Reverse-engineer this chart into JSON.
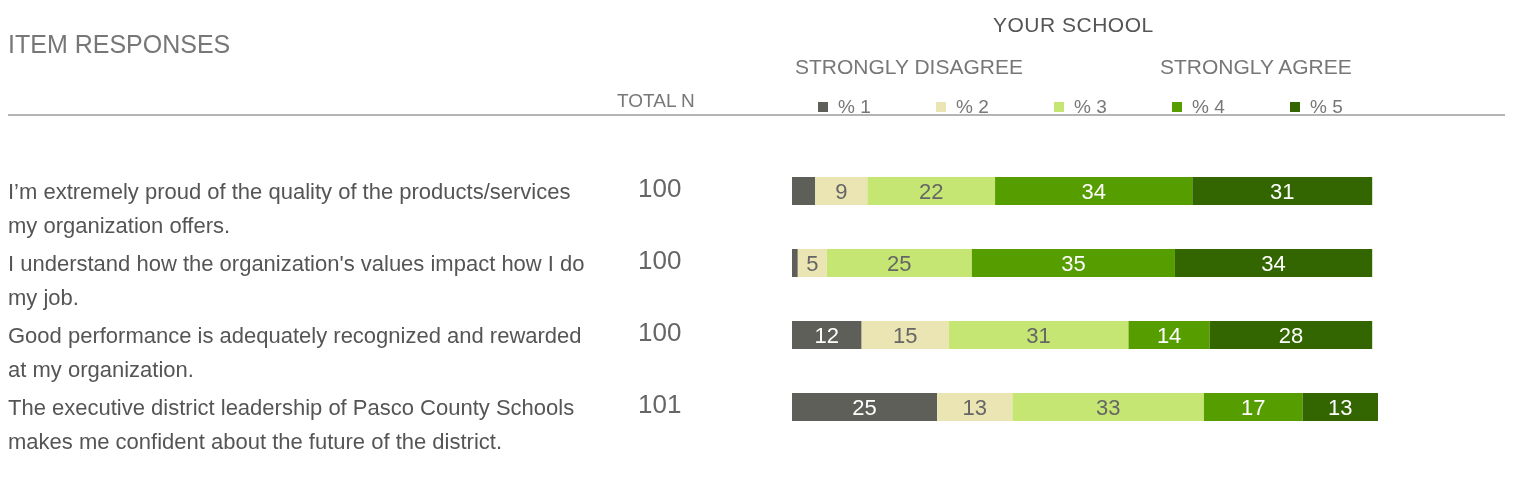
{
  "chart_data": {
    "type": "bar",
    "orientation": "horizontal",
    "stacked": true,
    "title": "ITEM RESPONSES",
    "legend_title": "YOUR SCHOOL",
    "legend": "top",
    "categories": [
      "I’m extremely proud of the quality of the products/services my organization offers.",
      "I understand how the organization's values impact how I do my job.",
      "Good performance is adequately recognized and rewarded at my organization.",
      "The executive district leadership of Pasco County Schools makes me confident about the future of the district."
    ],
    "series": [
      {
        "name": "% 1",
        "color": "#5f5f59",
        "values": [
          4,
          1,
          12,
          25
        ],
        "value_labels": [
          null,
          null,
          "12",
          "25"
        ]
      },
      {
        "name": "% 2",
        "color": "#ebe5b3",
        "values": [
          9,
          5,
          15,
          13
        ],
        "value_labels": [
          "9",
          "5",
          "15",
          "13"
        ]
      },
      {
        "name": "% 3",
        "color": "#c5e672",
        "values": [
          22,
          25,
          31,
          33
        ],
        "value_labels": [
          "22",
          "25",
          "31",
          "33"
        ]
      },
      {
        "name": "% 4",
        "color": "#569e00",
        "values": [
          34,
          35,
          14,
          17
        ],
        "value_labels": [
          "34",
          "35",
          "14",
          "17"
        ]
      },
      {
        "name": "% 5",
        "color": "#336600",
        "values": [
          31,
          34,
          28,
          13
        ],
        "value_labels": [
          "31",
          "34",
          "28",
          "13"
        ]
      }
    ],
    "annotations": [
      "STRONGLY DISAGREE",
      "STRONGLY AGREE",
      "TOTAL N",
      "100",
      "100",
      "100",
      "101"
    ]
  }
}
